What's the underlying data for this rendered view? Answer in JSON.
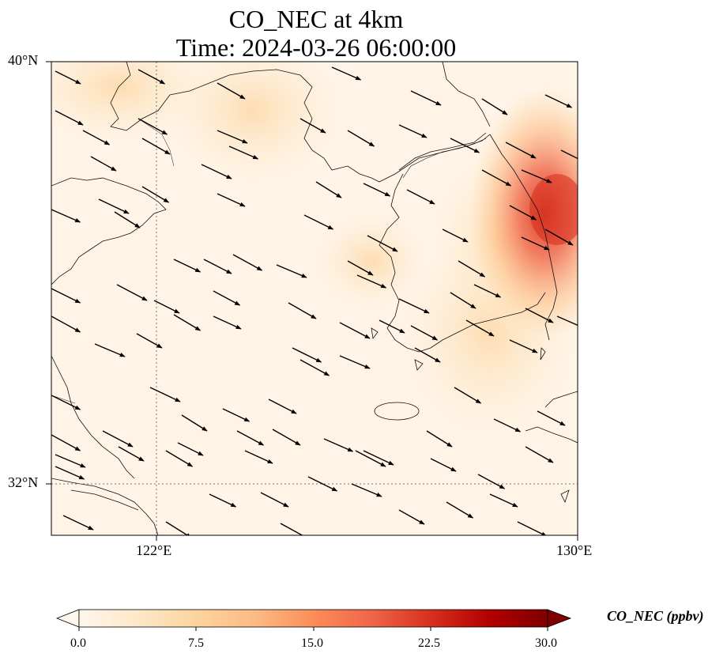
{
  "title": {
    "line1": "CO_NEC at 4km",
    "line2": "Time: 2024-03-26 06:00:00"
  },
  "map": {
    "lat_labels": [
      "40°N",
      "32°N"
    ],
    "lon_labels": [
      "122°E",
      "130°E"
    ],
    "extent": {
      "lon_min": 120,
      "lon_max": 130,
      "lat_min": 31,
      "lat_max": 40
    },
    "gridlines": {
      "lons": [
        122,
        130
      ],
      "lats": [
        32,
        40
      ],
      "style": "dotted"
    }
  },
  "colorbar": {
    "label": "CO_NEC (ppbv)",
    "ticks": [
      "0.0",
      "7.5",
      "15.0",
      "22.5",
      "30.0"
    ],
    "range": [
      0,
      30
    ],
    "extend": "both",
    "colormap": "OrRd",
    "colors": [
      "#fff7ec",
      "#fee8c8",
      "#fdd49e",
      "#fdbb84",
      "#fc8d59",
      "#ef6548",
      "#d7301f",
      "#b30000",
      "#7f0000"
    ]
  },
  "wind": {
    "description_color": "#000000",
    "direction": "northwest-to-southeast"
  },
  "hotspot": {
    "lon": 129.8,
    "lat": 37.9,
    "max_value": 20
  }
}
